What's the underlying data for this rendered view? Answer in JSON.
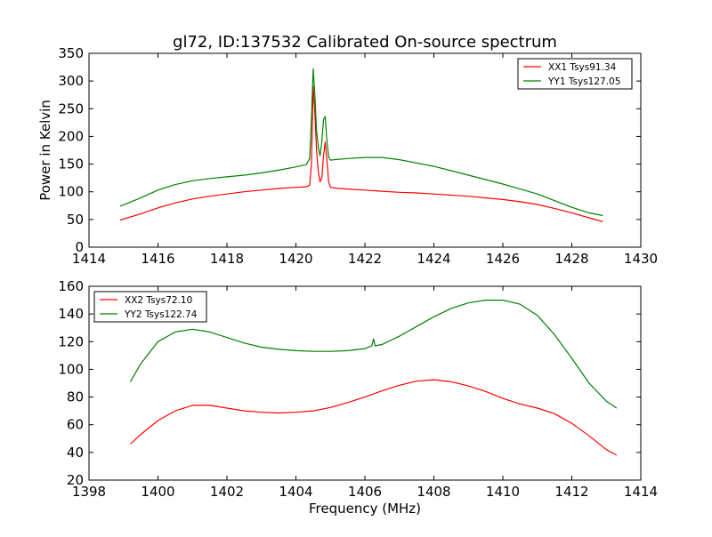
{
  "title": "gl72, ID:137532 Calibrated On-source spectrum",
  "colors": {
    "xx": "#ff0000",
    "yy": "#008000"
  },
  "chart_data": [
    {
      "type": "line",
      "ylabel": "Power in Kelvin",
      "xlabel": "",
      "xlim": [
        1414,
        1430
      ],
      "ylim": [
        0,
        350
      ],
      "x_ticks": [
        1414,
        1416,
        1418,
        1420,
        1422,
        1424,
        1426,
        1428,
        1430
      ],
      "y_ticks": [
        0,
        50,
        100,
        150,
        200,
        250,
        300,
        350
      ],
      "legend_position": "top-right",
      "grid": false,
      "series": [
        {
          "name": "XX1 Tsys91.34",
          "color": "#ff0000",
          "x": [
            1414.9,
            1415.5,
            1416,
            1416.5,
            1417,
            1417.5,
            1418,
            1418.5,
            1419,
            1419.5,
            1420,
            1420.3,
            1420.4,
            1420.45,
            1420.5,
            1420.55,
            1420.6,
            1420.65,
            1420.7,
            1420.75,
            1420.8,
            1420.85,
            1420.9,
            1420.95,
            1421.0,
            1421.1,
            1421.5,
            1422,
            1422.5,
            1423,
            1423.5,
            1424,
            1424.5,
            1425,
            1425.5,
            1426,
            1426.5,
            1427,
            1427.5,
            1428,
            1428.5,
            1428.9
          ],
          "y": [
            49,
            60,
            71,
            80,
            87,
            92,
            96,
            100,
            103,
            106,
            108,
            109,
            112,
            150,
            290,
            240,
            175,
            135,
            118,
            125,
            165,
            190,
            155,
            118,
            108,
            107,
            105,
            103,
            101,
            99,
            98,
            96,
            94,
            92,
            89,
            86,
            82,
            77,
            70,
            62,
            53,
            46
          ]
        },
        {
          "name": "YY1 Tsys127.05",
          "color": "#008000",
          "x": [
            1414.9,
            1415.5,
            1416,
            1416.5,
            1417,
            1417.5,
            1418,
            1418.5,
            1419,
            1419.5,
            1420,
            1420.3,
            1420.4,
            1420.45,
            1420.5,
            1420.55,
            1420.6,
            1420.65,
            1420.7,
            1420.75,
            1420.8,
            1420.85,
            1420.9,
            1420.95,
            1421.0,
            1421.1,
            1421.5,
            1422,
            1422.5,
            1423,
            1423.5,
            1424,
            1424.5,
            1425,
            1425.5,
            1426,
            1426.5,
            1427,
            1427.5,
            1428,
            1428.5,
            1428.9
          ],
          "y": [
            74,
            89,
            103,
            113,
            120,
            124,
            127,
            130,
            134,
            139,
            145,
            149,
            160,
            230,
            322,
            275,
            210,
            180,
            165,
            190,
            230,
            236,
            190,
            163,
            157,
            158,
            160,
            162,
            162,
            158,
            152,
            146,
            138,
            130,
            122,
            114,
            105,
            96,
            84,
            72,
            62,
            57
          ]
        }
      ]
    },
    {
      "type": "line",
      "ylabel": "",
      "xlabel": "Frequency (MHz)",
      "xlim": [
        1398,
        1414
      ],
      "ylim": [
        20,
        160
      ],
      "x_ticks": [
        1398,
        1400,
        1402,
        1404,
        1406,
        1408,
        1410,
        1412,
        1414
      ],
      "y_ticks": [
        20,
        40,
        60,
        80,
        100,
        120,
        140,
        160
      ],
      "legend_position": "top-left",
      "grid": false,
      "series": [
        {
          "name": "XX2 Tsys72.10",
          "color": "#ff0000",
          "x": [
            1399.2,
            1399.5,
            1400,
            1400.5,
            1401,
            1401.5,
            1402,
            1402.5,
            1403,
            1403.5,
            1404,
            1404.5,
            1405,
            1405.5,
            1406,
            1406.5,
            1407,
            1407.5,
            1408,
            1408.5,
            1409,
            1409.5,
            1410,
            1410.5,
            1411,
            1411.5,
            1412,
            1412.5,
            1413,
            1413.3
          ],
          "y": [
            46,
            53,
            63,
            70,
            74,
            74,
            72,
            70,
            69,
            68.5,
            69,
            70,
            72.5,
            76,
            80,
            84.5,
            88.5,
            91.5,
            92.5,
            91,
            88,
            84,
            79,
            75,
            72,
            68,
            61,
            52,
            42,
            38
          ]
        },
        {
          "name": "YY2 Tsys122.74",
          "color": "#008000",
          "x": [
            1399.2,
            1399.5,
            1400,
            1400.5,
            1401,
            1401.5,
            1402,
            1402.5,
            1403,
            1403.5,
            1404,
            1404.5,
            1405,
            1405.5,
            1406,
            1406.2,
            1406.25,
            1406.3,
            1406.5,
            1407,
            1407.5,
            1408,
            1408.5,
            1409,
            1409.5,
            1410,
            1410.5,
            1411,
            1411.5,
            1412,
            1412.5,
            1413,
            1413.3
          ],
          "y": [
            91,
            104,
            120,
            127,
            129,
            127,
            123,
            119,
            116,
            114.5,
            113.5,
            113,
            113,
            113.5,
            115,
            117,
            122,
            117,
            118,
            124,
            131,
            138,
            144,
            148,
            150,
            150,
            147,
            139,
            125,
            108,
            90,
            77,
            72
          ]
        }
      ]
    }
  ]
}
